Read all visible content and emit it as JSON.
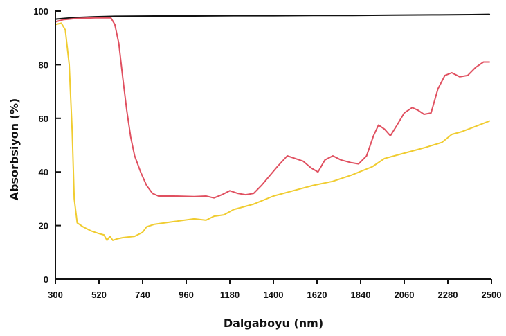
{
  "chart_data": {
    "type": "line",
    "title": "",
    "xlabel": "Dalgaboyu (nm)",
    "ylabel": "Absorbsiyon (%)",
    "xlim": [
      300,
      2500
    ],
    "ylim": [
      0,
      100
    ],
    "x_ticks": [
      300,
      520,
      740,
      960,
      1180,
      1400,
      1620,
      1840,
      2060,
      2280,
      2500
    ],
    "y_ticks": [
      0,
      20,
      40,
      60,
      80,
      100
    ],
    "grid": false,
    "legend": "none",
    "series": [
      {
        "color": "#111111",
        "points": [
          [
            300,
            97
          ],
          [
            350,
            97.3
          ],
          [
            400,
            97.6
          ],
          [
            500,
            97.9
          ],
          [
            600,
            98.1
          ],
          [
            800,
            98.2
          ],
          [
            1000,
            98.2
          ],
          [
            1200,
            98.3
          ],
          [
            1400,
            98.3
          ],
          [
            1600,
            98.4
          ],
          [
            1800,
            98.4
          ],
          [
            2000,
            98.5
          ],
          [
            2200,
            98.6
          ],
          [
            2400,
            98.7
          ],
          [
            2490,
            98.8
          ]
        ]
      },
      {
        "color": "#e05060",
        "points": [
          [
            300,
            96
          ],
          [
            340,
            96.8
          ],
          [
            400,
            97.2
          ],
          [
            500,
            97.5
          ],
          [
            580,
            97.5
          ],
          [
            600,
            95
          ],
          [
            620,
            88
          ],
          [
            640,
            75
          ],
          [
            660,
            63
          ],
          [
            680,
            53
          ],
          [
            700,
            46
          ],
          [
            730,
            40
          ],
          [
            760,
            35
          ],
          [
            790,
            32
          ],
          [
            820,
            31
          ],
          [
            900,
            31
          ],
          [
            1000,
            30.8
          ],
          [
            1060,
            31
          ],
          [
            1100,
            30.3
          ],
          [
            1140,
            31.5
          ],
          [
            1180,
            33
          ],
          [
            1220,
            32
          ],
          [
            1260,
            31.5
          ],
          [
            1300,
            32
          ],
          [
            1340,
            35
          ],
          [
            1380,
            38.5
          ],
          [
            1420,
            42
          ],
          [
            1470,
            46
          ],
          [
            1510,
            45
          ],
          [
            1550,
            44
          ],
          [
            1590,
            41.5
          ],
          [
            1625,
            40
          ],
          [
            1660,
            44.5
          ],
          [
            1700,
            46
          ],
          [
            1740,
            44.5
          ],
          [
            1790,
            43.5
          ],
          [
            1830,
            43
          ],
          [
            1870,
            46
          ],
          [
            1905,
            53.5
          ],
          [
            1930,
            57.5
          ],
          [
            1960,
            56
          ],
          [
            1990,
            53.5
          ],
          [
            2020,
            57
          ],
          [
            2060,
            62
          ],
          [
            2100,
            64
          ],
          [
            2130,
            63
          ],
          [
            2160,
            61.5
          ],
          [
            2195,
            62
          ],
          [
            2230,
            71
          ],
          [
            2265,
            76
          ],
          [
            2300,
            77
          ],
          [
            2340,
            75.5
          ],
          [
            2380,
            76
          ],
          [
            2420,
            79
          ],
          [
            2460,
            81
          ],
          [
            2490,
            81
          ]
        ]
      },
      {
        "color": "#f0cc30",
        "points": [
          [
            300,
            95
          ],
          [
            330,
            95.5
          ],
          [
            350,
            93
          ],
          [
            370,
            80
          ],
          [
            385,
            55
          ],
          [
            395,
            30
          ],
          [
            410,
            21
          ],
          [
            440,
            19.5
          ],
          [
            480,
            18
          ],
          [
            520,
            17
          ],
          [
            545,
            16.5
          ],
          [
            560,
            14.5
          ],
          [
            575,
            16
          ],
          [
            590,
            14.5
          ],
          [
            610,
            15
          ],
          [
            640,
            15.5
          ],
          [
            700,
            16
          ],
          [
            740,
            17.5
          ],
          [
            760,
            19.5
          ],
          [
            800,
            20.5
          ],
          [
            900,
            21.5
          ],
          [
            1000,
            22.5
          ],
          [
            1060,
            22
          ],
          [
            1100,
            23.5
          ],
          [
            1150,
            24
          ],
          [
            1200,
            26
          ],
          [
            1300,
            28
          ],
          [
            1400,
            31
          ],
          [
            1500,
            33
          ],
          [
            1600,
            35
          ],
          [
            1700,
            36.5
          ],
          [
            1800,
            39
          ],
          [
            1900,
            42
          ],
          [
            1960,
            45
          ],
          [
            2060,
            47
          ],
          [
            2160,
            49
          ],
          [
            2250,
            51
          ],
          [
            2300,
            54
          ],
          [
            2350,
            55
          ],
          [
            2420,
            57
          ],
          [
            2490,
            59
          ]
        ]
      }
    ]
  }
}
